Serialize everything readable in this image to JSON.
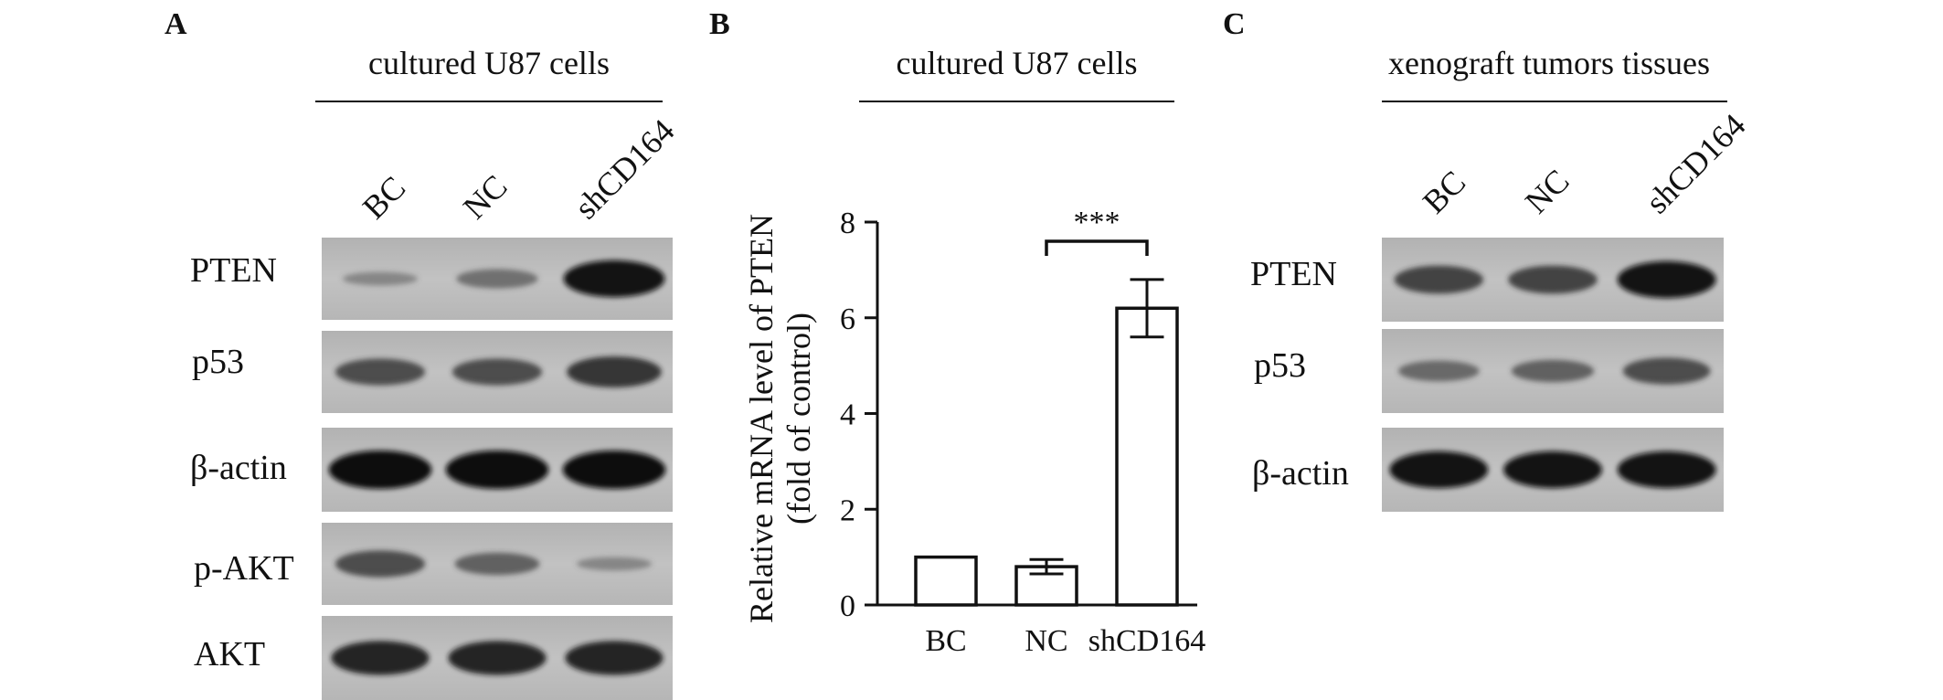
{
  "panels": {
    "a": {
      "letter": "A",
      "header": "cultured U87 cells",
      "lanes": [
        "BC",
        "NC",
        "shCD164"
      ],
      "rows": [
        {
          "label": "PTEN",
          "intensity": [
            0.15,
            0.35,
            0.95
          ]
        },
        {
          "label": "p53",
          "intensity": [
            0.6,
            0.6,
            0.75
          ]
        },
        {
          "label": "β-actin",
          "intensity": [
            1.0,
            1.0,
            1.0
          ]
        },
        {
          "label": "p-AKT",
          "intensity": [
            0.6,
            0.45,
            0.15
          ]
        },
        {
          "label": "AKT",
          "intensity": [
            0.85,
            0.85,
            0.85
          ]
        }
      ]
    },
    "b": {
      "letter": "B",
      "header": "cultured U87 cells",
      "significance": "***"
    },
    "c": {
      "letter": "C",
      "header": "xenograft tumors tissues",
      "lanes": [
        "BC",
        "NC",
        "shCD164"
      ],
      "rows": [
        {
          "label": "PTEN",
          "intensity": [
            0.65,
            0.65,
            0.95
          ]
        },
        {
          "label": "p53",
          "intensity": [
            0.4,
            0.45,
            0.6
          ]
        },
        {
          "label": "β-actin",
          "intensity": [
            0.95,
            0.95,
            0.95
          ]
        }
      ]
    }
  },
  "chart_data": {
    "type": "bar",
    "categories": [
      "BC",
      "NC",
      "shCD164"
    ],
    "values": [
      1.0,
      0.8,
      6.2
    ],
    "errors": [
      0,
      0.15,
      0.6
    ],
    "ylabel": "Relative mRNA level of PTEN",
    "ylabel2": "(fold of control)",
    "ylim": [
      0,
      8
    ],
    "yticks": [
      "0",
      "2",
      "4",
      "6",
      "8"
    ],
    "grid": false
  }
}
